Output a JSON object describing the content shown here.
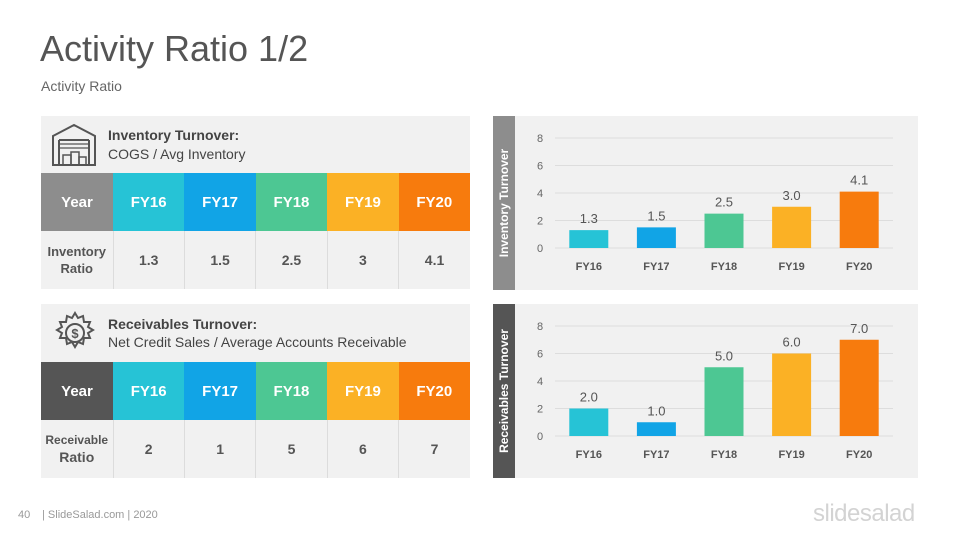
{
  "title": "Activity Ratio 1/2",
  "subtitle": "Activity Ratio",
  "colors": {
    "fy16": "#26c3d6",
    "fy17": "#11a4e6",
    "fy18": "#4dc793",
    "fy19": "#fbb125",
    "fy20": "#f77b0d"
  },
  "inventory": {
    "icon": "warehouse-icon",
    "title": "Inventory Turnover:",
    "formula": "COGS / Avg Inventory",
    "year_label": "Year",
    "years": [
      "FY16",
      "FY17",
      "FY18",
      "FY19",
      "FY20"
    ],
    "row_label_1": "Inventory",
    "row_label_2": "Ratio",
    "values": [
      "1.3",
      "1.5",
      "2.5",
      "3",
      "4.1"
    ]
  },
  "receivables": {
    "icon": "gear-dollar-icon",
    "title": "Receivables Turnover:",
    "formula": "Net Credit Sales / Average Accounts Receivable",
    "year_label": "Year",
    "years": [
      "FY16",
      "FY17",
      "FY18",
      "FY19",
      "FY20"
    ],
    "row_label_1": "Receivable",
    "row_label_2": "Ratio",
    "values": [
      "2",
      "1",
      "5",
      "6",
      "7"
    ]
  },
  "chart_data": [
    {
      "type": "bar",
      "title": "",
      "side_label": "Inventory Turnover",
      "categories": [
        "FY16",
        "FY17",
        "FY18",
        "FY19",
        "FY20"
      ],
      "values": [
        1.3,
        1.5,
        2.5,
        3.0,
        4.1
      ],
      "data_labels": [
        "1.3",
        "1.5",
        "2.5",
        "3.0",
        "4.1"
      ],
      "ylim": [
        0,
        8
      ],
      "yticks": [
        "0",
        "2",
        "4",
        "6",
        "8"
      ],
      "grid": true
    },
    {
      "type": "bar",
      "title": "",
      "side_label": "Receivables Turnover",
      "categories": [
        "FY16",
        "FY17",
        "FY18",
        "FY19",
        "FY20"
      ],
      "values": [
        2.0,
        1.0,
        5.0,
        6.0,
        7.0
      ],
      "data_labels": [
        "2.0",
        "1.0",
        "5.0",
        "6.0",
        "7.0"
      ],
      "ylim": [
        0,
        8
      ],
      "yticks": [
        "0",
        "2",
        "4",
        "6",
        "8"
      ],
      "grid": true
    }
  ],
  "footer": {
    "page": "40",
    "text": "| SlideSalad.com | 2020",
    "logo": "slidesalad"
  }
}
